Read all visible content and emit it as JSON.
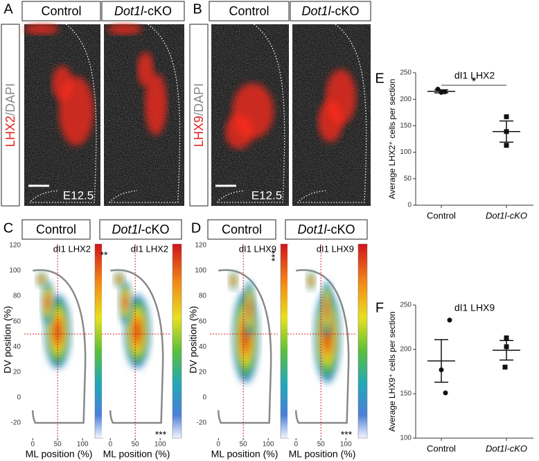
{
  "panel_letters": [
    "A",
    "B",
    "C",
    "D",
    "E",
    "F"
  ],
  "labels": {
    "control": "Control",
    "gene": "Dot1l",
    "suffix": "-cKO"
  },
  "stains": [
    {
      "marker": "LHX2",
      "counter": "/DAPI"
    },
    {
      "marker": "LHX9",
      "counter": "/DAPI"
    }
  ],
  "stage": "E12.5",
  "density_axes": {
    "x_label": "ML position (%)",
    "y_label": "DV position (%)",
    "xlim": [
      -17,
      122
    ],
    "ylim": [
      -32,
      121
    ],
    "xticks": [
      0,
      50,
      100
    ],
    "yticks": [
      -20,
      0,
      20,
      40,
      60,
      80,
      100,
      120
    ]
  },
  "density_plots": [
    {
      "title": "dI1 LHX2",
      "significance": [
        {
          "text": "**",
          "corner": "top"
        },
        {
          "text": "***",
          "corner": "bottom"
        }
      ]
    },
    {
      "title": "dI1 LHX9",
      "significance": [
        {
          "text": "***",
          "corner": "top"
        },
        {
          "text": "***",
          "corner": "bottom"
        }
      ]
    }
  ],
  "chart_data": [
    {
      "type": "scatter",
      "title": "dI1 LHX2",
      "y_label": "Average LHX2⁺ cells per section",
      "categories": [
        "Control",
        "Dot1l-cKO"
      ],
      "points": [
        [
          219,
          213,
          214
        ],
        [
          167,
          139,
          113
        ]
      ],
      "means": [
        215,
        139
      ],
      "errors": [
        3,
        20
      ],
      "markers": [
        "circle",
        "square"
      ],
      "ylim": [
        0,
        250
      ],
      "yticks": [
        0,
        50,
        100,
        150,
        200,
        250
      ],
      "significance": "*"
    },
    {
      "type": "scatter",
      "title": "dI1 LHX9",
      "y_label": "Average LHX9⁺ cells per section",
      "categories": [
        "Control",
        "Dot1l-cKO"
      ],
      "points": [
        [
          233,
          177,
          151
        ],
        [
          213,
          203,
          180
        ]
      ],
      "means": [
        187,
        199
      ],
      "errors": [
        24,
        11
      ],
      "markers": [
        "circle",
        "square"
      ],
      "ylim": [
        100,
        250
      ],
      "yticks": [
        100,
        150,
        200,
        250
      ]
    }
  ]
}
